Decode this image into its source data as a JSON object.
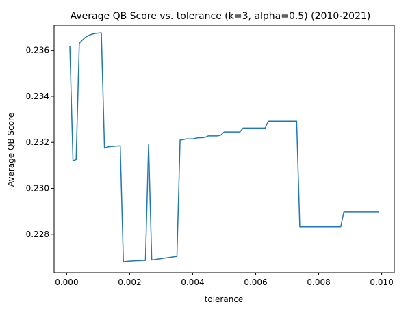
{
  "chart_data": {
    "type": "line",
    "title": "Average QB Score vs. tolerance (k=3, alpha=0.5) (2010-2021)",
    "xlabel": "tolerance",
    "ylabel": "Average QB Score",
    "xlim": [
      -0.0004,
      0.0104
    ],
    "ylim": [
      0.22633,
      0.23709
    ],
    "xticks": [
      0.0,
      0.002,
      0.004,
      0.006,
      0.008,
      0.01
    ],
    "xtick_labels": [
      "0.000",
      "0.002",
      "0.004",
      "0.006",
      "0.008",
      "0.010"
    ],
    "yticks": [
      0.228,
      0.23,
      0.232,
      0.234,
      0.236
    ],
    "ytick_labels": [
      "0.228",
      "0.230",
      "0.232",
      "0.234",
      "0.236"
    ],
    "grid": false,
    "color": "#1f77b4",
    "series": [
      {
        "x": [
          0.0001,
          0.0002,
          0.0003,
          0.0004,
          0.0005,
          0.0006,
          0.0007,
          0.0008,
          0.0009,
          0.001,
          0.0011,
          0.0012,
          0.0013,
          0.0014,
          0.0015,
          0.0016,
          0.0017,
          0.0018,
          0.0019,
          0.002,
          0.0021,
          0.0022,
          0.0023,
          0.0024,
          0.0025,
          0.0026,
          0.0027,
          0.0028,
          0.0029,
          0.003,
          0.0031,
          0.0032,
          0.0033,
          0.0034,
          0.0035,
          0.0036,
          0.0037,
          0.0038,
          0.0039,
          0.004,
          0.0041,
          0.0042,
          0.0043,
          0.0044,
          0.0045,
          0.0046,
          0.0047,
          0.0048,
          0.0049,
          0.005,
          0.0051,
          0.0052,
          0.0053,
          0.0054,
          0.0055,
          0.0056,
          0.0057,
          0.0058,
          0.0059,
          0.006,
          0.0061,
          0.0062,
          0.0063,
          0.0064,
          0.0065,
          0.0066,
          0.0067,
          0.0068,
          0.0069,
          0.007,
          0.0071,
          0.0072,
          0.0073,
          0.0074,
          0.0075,
          0.0076,
          0.0077,
          0.0078,
          0.0079,
          0.008,
          0.0081,
          0.0082,
          0.0083,
          0.0084,
          0.0085,
          0.0086,
          0.0087,
          0.0088,
          0.0089,
          0.009,
          0.0091,
          0.0092,
          0.0093,
          0.0094,
          0.0095,
          0.0096,
          0.0097,
          0.0098,
          0.0099
        ],
        "y": [
          0.2362,
          0.2312,
          0.23125,
          0.2363,
          0.23645,
          0.23657,
          0.23665,
          0.2367,
          0.23673,
          0.23675,
          0.23676,
          0.23175,
          0.2318,
          0.23182,
          0.23183,
          0.23184,
          0.23185,
          0.2268,
          0.22682,
          0.22683,
          0.22684,
          0.22685,
          0.22685,
          0.22686,
          0.22686,
          0.2319,
          0.22688,
          0.2269,
          0.22692,
          0.22694,
          0.22696,
          0.22698,
          0.227,
          0.22702,
          0.22704,
          0.2321,
          0.23212,
          0.23215,
          0.23215,
          0.23215,
          0.23218,
          0.2322,
          0.2322,
          0.23222,
          0.23228,
          0.23228,
          0.23228,
          0.23228,
          0.23232,
          0.23245,
          0.23245,
          0.23245,
          0.23245,
          0.23245,
          0.23245,
          0.23262,
          0.23262,
          0.23262,
          0.23262,
          0.23262,
          0.23262,
          0.23262,
          0.23262,
          0.23292,
          0.23292,
          0.23292,
          0.23292,
          0.23292,
          0.23292,
          0.23292,
          0.23292,
          0.23292,
          0.23292,
          0.22833,
          0.22833,
          0.22833,
          0.22833,
          0.22833,
          0.22833,
          0.22833,
          0.22833,
          0.22833,
          0.22833,
          0.22833,
          0.22833,
          0.22833,
          0.22833,
          0.22898,
          0.22898,
          0.22898,
          0.22898,
          0.22898,
          0.22898,
          0.22898,
          0.22898,
          0.22898,
          0.22898,
          0.22898,
          0.22898
        ]
      }
    ]
  }
}
